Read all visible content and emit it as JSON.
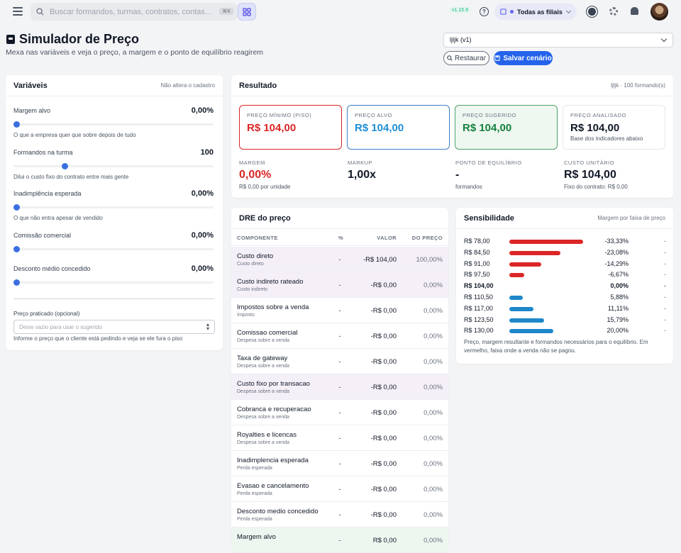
{
  "topbar": {
    "search_placeholder": "Buscar formandos, turmas, contratos, contas...",
    "shortcut": "⌘K",
    "version": "v1.15.9",
    "branch": "Todas as filiais"
  },
  "page": {
    "title": "Simulador de Preço",
    "subtitle": "Mexa nas variáveis e veja o preço, a margem e o ponto de equilíbrio reagirem"
  },
  "scenario": {
    "selected": "ljljk (v1)",
    "restore_label": "Restaurar",
    "save_label": "Salvar cenário"
  },
  "variables": {
    "title": "Variáveis",
    "note": "Não altera o cadastro",
    "items": [
      {
        "name": "Margem alvo",
        "value": "0,00%",
        "help": "O que a empresa quer que sobre depois de tudo",
        "level": 0
      },
      {
        "name": "Formandos na turma",
        "value": "100",
        "help": "Dilui o custo fixo do contrato entre mais gente",
        "level": 0.24
      },
      {
        "name": "Inadimplência esperada",
        "value": "0,00%",
        "help": "O que não entra apesar de vendido",
        "level": 0
      },
      {
        "name": "Comissão comercial",
        "value": "0,00%",
        "help": "",
        "level": 0
      },
      {
        "name": "Desconto médio concedido",
        "value": "0,00%",
        "help": "",
        "level": 0
      }
    ],
    "price_label": "Preço praticado (opcional)",
    "price_placeholder": "Deixe vazio para usar o sugerido",
    "price_help": "Informe o preço que o cliente está pedindo e veja se ele fura o piso"
  },
  "result": {
    "title": "Resultado",
    "note": "ljljk · 100 formando(s)",
    "cards": [
      {
        "label": "PREÇO MÍNIMO (PISO)",
        "value": "R$ 104,00",
        "sub": "",
        "color": "#dc2626",
        "border": "#dc2626",
        "bg": "#ffffff"
      },
      {
        "label": "PREÇO ALVO",
        "value": "R$ 104,00",
        "sub": "",
        "color": "#1d8fd6",
        "border": "#3b82c4",
        "bg": "#ffffff"
      },
      {
        "label": "PREÇO SUGERIDO",
        "value": "R$ 104,00",
        "sub": "",
        "color": "#15803d",
        "border": "#4ca36b",
        "bg": "#eef7f0"
      },
      {
        "label": "PREÇO ANALISADO",
        "value": "R$ 104,00",
        "sub": "Base dos indicadores abaixo",
        "color": "#111827",
        "border": "#e5e7eb",
        "bg": "#ffffff"
      }
    ],
    "stats": [
      {
        "label": "MARGEM",
        "value": "0,00%",
        "sub": "R$ 0,00 por unidade",
        "color": "#dc2626"
      },
      {
        "label": "MARKUP",
        "value": "1,00x",
        "sub": "",
        "color": "#111827"
      },
      {
        "label": "PONTO DE EQUILÍBRIO",
        "value": "-",
        "sub": "formandos",
        "color": "#111827"
      },
      {
        "label": "CUSTO UNITÁRIO",
        "value": "R$ 104,00",
        "sub": "Fixo do contrato: R$ 0,00",
        "color": "#111827"
      }
    ]
  },
  "dre": {
    "title": "DRE do preço",
    "headers": [
      "COMPONENTE",
      "%",
      "VALOR",
      "DO PREÇO"
    ],
    "rows": [
      {
        "name": "Custo direto",
        "cat": "Custo direto",
        "pct": "-",
        "value": "-R$ 104,00",
        "share": "100,00%",
        "hl": true
      },
      {
        "name": "Custo indireto rateado",
        "cat": "Custo indireto",
        "pct": "-",
        "value": "-R$ 0,00",
        "share": "0,00%",
        "hl": true
      },
      {
        "name": "Impostos sobre a venda",
        "cat": "Imposto",
        "pct": "-",
        "value": "-R$ 0,00",
        "share": "0,00%",
        "hl": false
      },
      {
        "name": "Comissao comercial",
        "cat": "Despesa sobre a venda",
        "pct": "-",
        "value": "-R$ 0,00",
        "share": "0,00%",
        "hl": false
      },
      {
        "name": "Taxa de gateway",
        "cat": "Despesa sobre a venda",
        "pct": "-",
        "value": "-R$ 0,00",
        "share": "0,00%",
        "hl": false
      },
      {
        "name": "Custo fixo por transacao",
        "cat": "Despesa sobre a venda",
        "pct": "-",
        "value": "-R$ 0,00",
        "share": "0,00%",
        "hl": true
      },
      {
        "name": "Cobranca e recuperacao",
        "cat": "Despesa sobre a venda",
        "pct": "-",
        "value": "-R$ 0,00",
        "share": "0,00%",
        "hl": false
      },
      {
        "name": "Royalties e licencas",
        "cat": "Despesa sobre a venda",
        "pct": "-",
        "value": "-R$ 0,00",
        "share": "0,00%",
        "hl": false
      },
      {
        "name": "Inadimplencia esperada",
        "cat": "Perda esperada",
        "pct": "-",
        "value": "-R$ 0,00",
        "share": "0,00%",
        "hl": false
      },
      {
        "name": "Evasao e cancelamento",
        "cat": "Perda esperada",
        "pct": "-",
        "value": "-R$ 0,00",
        "share": "0,00%",
        "hl": false
      },
      {
        "name": "Desconto medio concedido",
        "cat": "Perda esperada",
        "pct": "-",
        "value": "-R$ 0,00",
        "share": "0,00%",
        "hl": false
      },
      {
        "name": "Margem alvo",
        "cat": "",
        "pct": "-",
        "value": "R$ 0,00",
        "share": "0,00%",
        "hl": true
      }
    ]
  },
  "sensitivity": {
    "title": "Sensibilidade",
    "note": "Margem por faixa de preço",
    "rows": [
      {
        "price": "R$ 78,00",
        "margin": "-33,33%",
        "dash": "-",
        "bar": 1.0,
        "color": "#dc2626",
        "bold": false
      },
      {
        "price": "R$ 84,50",
        "margin": "-23,08%",
        "dash": "-",
        "bar": 0.69,
        "color": "#dc2626",
        "bold": false
      },
      {
        "price": "R$ 91,00",
        "margin": "-14,29%",
        "dash": "-",
        "bar": 0.43,
        "color": "#dc2626",
        "bold": false
      },
      {
        "price": "R$ 97,50",
        "margin": "-6,67%",
        "dash": "-",
        "bar": 0.2,
        "color": "#dc2626",
        "bold": false
      },
      {
        "price": "R$ 104,00",
        "margin": "0,00%",
        "dash": "-",
        "bar": 0,
        "color": "#dc2626",
        "bold": true
      },
      {
        "price": "R$ 110,50",
        "margin": "5,88%",
        "dash": "-",
        "bar": 0.18,
        "color": "#1d87c9",
        "bold": false
      },
      {
        "price": "R$ 117,00",
        "margin": "11,11%",
        "dash": "-",
        "bar": 0.33,
        "color": "#1d87c9",
        "bold": false
      },
      {
        "price": "R$ 123,50",
        "margin": "15,79%",
        "dash": "-",
        "bar": 0.47,
        "color": "#1d87c9",
        "bold": false
      },
      {
        "price": "R$ 130,00",
        "margin": "20,00%",
        "dash": "-",
        "bar": 0.6,
        "color": "#1d87c9",
        "bold": false
      }
    ],
    "footnote": "Preço, margem resultante e formandos necessários para o equilíbrio. Em vermelho, faixa onde a venda não se pagou."
  }
}
